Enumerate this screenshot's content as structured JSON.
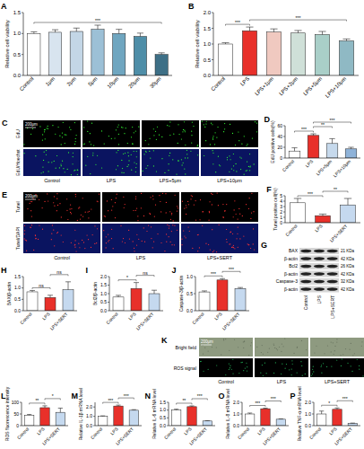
{
  "chart_data": [
    {
      "panel": "A",
      "type": "bar",
      "y_label": "Relative cell viability",
      "categories": [
        "Control",
        "1μm",
        "2μm",
        "5μm",
        "10μm",
        "20μm",
        "30μm"
      ],
      "values": [
        1.0,
        1.03,
        1.05,
        1.1,
        1.0,
        0.93,
        0.5
      ],
      "errors": [
        0.04,
        0.06,
        0.08,
        0.1,
        0.1,
        0.08,
        0.04
      ],
      "colors": [
        "#ffffff",
        "#d8e4ef",
        "#c3d6e6",
        "#9cc0d6",
        "#6fa6c0",
        "#4e8ea8",
        "#3d6f86"
      ],
      "ylim": [
        0,
        1.5
      ],
      "yticks": [
        {
          "value": 0,
          "label": "0.0"
        },
        0.5,
        {
          "value": 1,
          "label": "1.0"
        },
        1.5
      ],
      "significance": [
        {
          "from": 0,
          "to": 6,
          "label": "***"
        }
      ]
    },
    {
      "panel": "B",
      "type": "bar",
      "y_label": "Relative cell viability",
      "categories": [
        "Control",
        "LPS",
        "LPS+1μm",
        "LPS+2μm",
        "LPS+5μm",
        "LPS+10μm"
      ],
      "values": [
        1.0,
        1.42,
        1.38,
        1.35,
        1.3,
        1.1
      ],
      "errors": [
        0.04,
        0.12,
        0.1,
        0.08,
        0.1,
        0.06
      ],
      "colors": [
        "#ffffff",
        "#e8302a",
        "#f0c9c0",
        "#cfe0d8",
        "#a9cfc8",
        "#8fb9c4"
      ],
      "ylim": [
        0,
        2
      ],
      "yticks": [
        {
          "value": 0,
          "label": "0.0"
        },
        0.5,
        {
          "value": 1,
          "label": "1.0"
        },
        1.5,
        {
          "value": 2,
          "label": "2.0"
        }
      ],
      "significance": [
        {
          "from": 0,
          "to": 1,
          "label": "***"
        },
        {
          "from": 1,
          "to": 5,
          "label": "***"
        }
      ]
    },
    {
      "panel": "D",
      "type": "bar",
      "y_label": "EdU positive cells(%)",
      "categories": [
        "Control",
        "LPS",
        "LPS+5μm",
        "LPS+10μm"
      ],
      "values": [
        13,
        42,
        27,
        17
      ],
      "errors": [
        6,
        3,
        9,
        3
      ],
      "colors": [
        "#ffffff",
        "#e8302a",
        "#c6d9ec",
        "#8fb3d9"
      ],
      "ylim": [
        0,
        60
      ],
      "yticks": [
        0,
        20,
        40,
        60
      ],
      "significance": [
        {
          "from": 0,
          "to": 1,
          "label": "***"
        },
        {
          "from": 1,
          "to": 2,
          "label": "**"
        },
        {
          "from": 1,
          "to": 3,
          "label": "***"
        }
      ]
    },
    {
      "panel": "F",
      "type": "bar",
      "y_label": "Tunel positive cell(%)",
      "categories": [
        "Control",
        "LPS",
        "LPS+SERT"
      ],
      "values": [
        3.7,
        1.3,
        3.3
      ],
      "errors": [
        0.8,
        0.3,
        1.2
      ],
      "colors": [
        "#ffffff",
        "#e8302a",
        "#c5d9ef"
      ],
      "ylim": [
        0,
        5
      ],
      "yticks": [
        0,
        1,
        2,
        3,
        4,
        5
      ],
      "significance": [
        {
          "from": 0,
          "to": 1,
          "label": "***"
        },
        {
          "from": 1,
          "to": 2,
          "label": "**"
        }
      ]
    },
    {
      "panel": "H",
      "type": "bar",
      "y_label": "BAX/β-actin",
      "categories": [
        "Control",
        "LPS",
        "LPS+SERT"
      ],
      "values": [
        0.83,
        0.58,
        0.92
      ],
      "errors": [
        0.06,
        0.1,
        0.35
      ],
      "colors": [
        "#ffffff",
        "#e8302a",
        "#c5d9ef"
      ],
      "ylim": [
        0,
        1.5
      ],
      "yticks": [
        {
          "value": 0,
          "label": "0.0"
        },
        0.5,
        {
          "value": 1,
          "label": "1.0"
        },
        1.5
      ],
      "significance": [
        {
          "from": 0,
          "to": 1,
          "label": "ns"
        },
        {
          "from": 1,
          "to": 2,
          "label": "ns"
        }
      ]
    },
    {
      "panel": "I",
      "type": "bar",
      "y_label": "Bcl2/β-actin",
      "categories": [
        "Control",
        "LPS",
        "LPS+SERT"
      ],
      "values": [
        0.8,
        1.3,
        1.0
      ],
      "errors": [
        0.1,
        0.35,
        0.2
      ],
      "colors": [
        "#ffffff",
        "#e8302a",
        "#c5d9ef"
      ],
      "ylim": [
        0,
        2
      ],
      "yticks": [
        {
          "value": 0,
          "label": "0.0"
        },
        0.5,
        {
          "value": 1,
          "label": "1.0"
        },
        1.5,
        {
          "value": 2,
          "label": "2.0"
        }
      ],
      "significance": [
        {
          "from": 0,
          "to": 1,
          "label": "*"
        },
        {
          "from": 1,
          "to": 2,
          "label": "ns"
        }
      ]
    },
    {
      "panel": "J",
      "type": "bar",
      "y_label": "Caspase-3/β-actin",
      "categories": [
        "Control",
        "LPS",
        "LPS+SERT"
      ],
      "values": [
        0.55,
        0.9,
        0.65
      ],
      "errors": [
        0.03,
        0.04,
        0.03
      ],
      "colors": [
        "#ffffff",
        "#e8302a",
        "#c5d9ef"
      ],
      "ylim": [
        0,
        1
      ],
      "yticks": [
        {
          "value": 0,
          "label": "0.0"
        },
        0.5,
        {
          "value": 1,
          "label": "1.0"
        }
      ],
      "significance": [
        {
          "from": 0,
          "to": 1,
          "label": "***"
        },
        {
          "from": 1,
          "to": 2,
          "label": "***"
        }
      ]
    },
    {
      "panel": "L",
      "type": "bar",
      "y_label": "ROS fluorescence intensity",
      "categories": [
        "Control",
        "LPS",
        "LPS+SERT"
      ],
      "values": [
        45,
        77,
        57
      ],
      "errors": [
        3,
        8,
        18
      ],
      "colors": [
        "#ffffff",
        "#e8302a",
        "#c5d9ef"
      ],
      "ylim": [
        0,
        100
      ],
      "yticks": [
        0,
        50,
        100
      ],
      "significance": [
        {
          "from": 0,
          "to": 1,
          "label": "**"
        },
        {
          "from": 1,
          "to": 2,
          "label": "*"
        }
      ]
    },
    {
      "panel": "M",
      "type": "bar",
      "y_label": "Relative IL-1β mRNA level",
      "categories": [
        "Control",
        "LPS",
        "LPS+SERT"
      ],
      "values": [
        1.0,
        2.1,
        1.65
      ],
      "errors": [
        0.05,
        0.1,
        0.06
      ],
      "colors": [
        "#ffffff",
        "#e8302a",
        "#c5d9ef"
      ],
      "ylim": [
        0,
        2.5
      ],
      "yticks": [
        {
          "value": 0,
          "label": "0.0"
        },
        {
          "value": 1,
          "label": "1.0"
        },
        {
          "value": 2,
          "label": "2.0"
        }
      ],
      "significance": [
        {
          "from": 0,
          "to": 1,
          "label": "***"
        },
        {
          "from": 1,
          "to": 2,
          "label": "***"
        }
      ]
    },
    {
      "panel": "N",
      "type": "bar",
      "y_label": "Relative IL-6 mRNA level",
      "categories": [
        "Control",
        "LPS",
        "LPS+SERT"
      ],
      "values": [
        1.0,
        1.22,
        0.3
      ],
      "errors": [
        0.06,
        0.05,
        0.02
      ],
      "colors": [
        "#ffffff",
        "#e8302a",
        "#c5d9ef"
      ],
      "ylim": [
        0,
        1.5
      ],
      "yticks": [
        {
          "value": 0,
          "label": "0.0"
        },
        0.5,
        {
          "value": 1,
          "label": "1.0"
        },
        1.5
      ],
      "significance": [
        {
          "from": 0,
          "to": 1,
          "label": "**"
        },
        {
          "from": 1,
          "to": 2,
          "label": "***"
        }
      ]
    },
    {
      "panel": "O",
      "type": "bar",
      "y_label": "Relative IL-8 mRNA level",
      "categories": [
        "Control",
        "LPS",
        "LPS+SERT"
      ],
      "values": [
        1.0,
        1.45,
        0.55
      ],
      "errors": [
        0.08,
        0.05,
        0.03
      ],
      "colors": [
        "#ffffff",
        "#e8302a",
        "#c5d9ef"
      ],
      "ylim": [
        0,
        2
      ],
      "yticks": [
        {
          "value": 0,
          "label": "0.0"
        },
        {
          "value": 1,
          "label": "1.0"
        },
        {
          "value": 2,
          "label": "2.0"
        }
      ],
      "significance": [
        {
          "from": 0,
          "to": 1,
          "label": "***"
        },
        {
          "from": 1,
          "to": 2,
          "label": "***"
        }
      ]
    },
    {
      "panel": "P",
      "type": "bar",
      "y_label": "Relative TNF-α mRNA level",
      "categories": [
        "Control",
        "LPS",
        "LPS+SERT"
      ],
      "values": [
        1.0,
        1.4,
        0.2
      ],
      "errors": [
        0.25,
        0.12,
        0.02
      ],
      "colors": [
        "#ffffff",
        "#e8302a",
        "#c5d9ef"
      ],
      "ylim": [
        0,
        2
      ],
      "yticks": [
        {
          "value": 0,
          "label": "0.0"
        },
        {
          "value": 1,
          "label": "1.0"
        },
        {
          "value": 2,
          "label": "2.0"
        }
      ],
      "significance": [
        {
          "from": 0,
          "to": 1,
          "label": "*"
        },
        {
          "from": 1,
          "to": 2,
          "label": "***"
        }
      ]
    }
  ],
  "image_panels": [
    {
      "panel": "C",
      "rows": [
        "EdU",
        "EdU/Hoechst"
      ],
      "columns": [
        "Control",
        "LPS",
        "LPS+5μm",
        "LPS+10μm"
      ],
      "scale_bar": "200μm"
    },
    {
      "panel": "E",
      "rows": [
        "Tunel",
        "Tunel/DAPI"
      ],
      "columns": [
        "Control",
        "LPS",
        "LPS+SERT"
      ],
      "scale_bar": "200μm"
    },
    {
      "panel": "K",
      "rows": [
        "Bright field",
        "ROS signal"
      ],
      "columns": [
        "Control",
        "LPS",
        "LPS+SERT"
      ],
      "scale_bar": "200μm"
    }
  ],
  "blot": {
    "panel": "G",
    "bands": [
      {
        "label": "BAX",
        "size": "21 KDa"
      },
      {
        "label": "β-actin",
        "size": "42 KDa"
      },
      {
        "label": "Bcl2",
        "size": "26 KDa"
      },
      {
        "label": "β-actin",
        "size": "42 KDa"
      },
      {
        "label": "Caspase-3",
        "size": "32 KDa"
      },
      {
        "label": "β-actin",
        "size": "42 KDa"
      }
    ],
    "lanes": [
      "Control",
      "LPS",
      "LPS+SERT"
    ]
  }
}
